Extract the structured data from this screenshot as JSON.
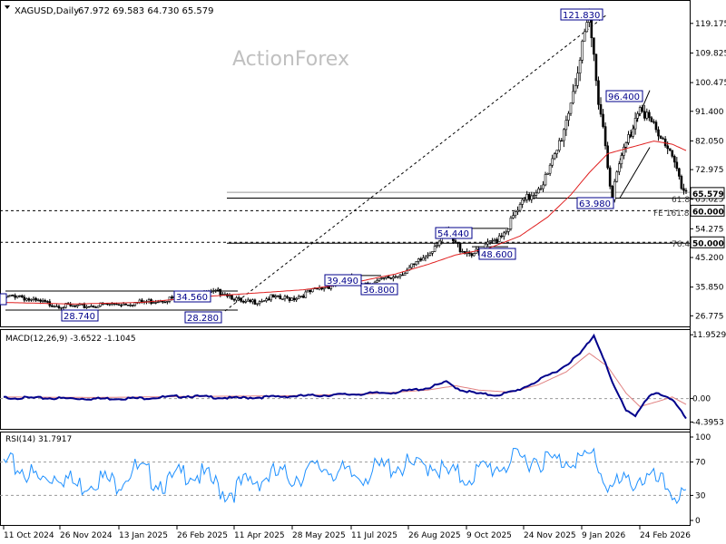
{
  "header": {
    "symbol": "XAGUSD,Daily",
    "ohlc": "67.972 69.583 64.730 65.579",
    "watermark": "ActionForex"
  },
  "colors": {
    "candles": "#000000",
    "ma": "#e02020",
    "macd_line": "#00008b",
    "macd_signal": "#e08080",
    "rsi": "#1e90ff",
    "label_border": "#00008b",
    "grid_dash": "#000000"
  },
  "chart_data": [
    {
      "panel": "price",
      "type": "candlestick",
      "yaxis_ticks": [
        "119.175",
        "109.825",
        "100.475",
        "91.400",
        "82.050",
        "72.975",
        "63.625",
        "54.275",
        "45.200",
        "35.850",
        "26.775"
      ],
      "ylim": [
        24.0,
        126.0
      ],
      "current_price": "65.579",
      "close_path": [
        [
          0,
          32.5
        ],
        [
          6,
          34
        ],
        [
          12,
          32
        ],
        [
          20,
          31
        ],
        [
          30,
          30
        ],
        [
          40,
          30.5
        ],
        [
          50,
          31
        ],
        [
          60,
          31.5
        ],
        [
          70,
          32.5
        ],
        [
          78,
          33
        ],
        [
          88,
          34
        ],
        [
          95,
          35
        ],
        [
          100,
          33
        ],
        [
          104,
          31
        ],
        [
          110,
          32
        ],
        [
          116,
          33
        ],
        [
          120,
          32.5
        ],
        [
          126,
          33
        ],
        [
          132,
          34.5
        ],
        [
          138,
          36
        ],
        [
          145,
          38
        ],
        [
          150,
          39.2
        ],
        [
          155,
          38
        ],
        [
          160,
          37.5
        ],
        [
          164,
          38.5
        ],
        [
          170,
          40
        ],
        [
          178,
          43
        ],
        [
          184,
          47
        ],
        [
          188,
          51
        ],
        [
          192,
          54
        ],
        [
          196,
          50
        ],
        [
          200,
          48
        ],
        [
          206,
          47
        ],
        [
          212,
          51
        ],
        [
          218,
          55
        ],
        [
          224,
          62
        ],
        [
          230,
          67
        ],
        [
          236,
          72
        ],
        [
          240,
          80
        ],
        [
          244,
          90
        ],
        [
          248,
          103
        ],
        [
          252,
          115
        ],
        [
          254,
          121.5
        ],
        [
          256,
          110
        ],
        [
          258,
          98
        ],
        [
          260,
          88
        ],
        [
          262,
          76
        ],
        [
          264,
          66
        ],
        [
          268,
          78
        ],
        [
          272,
          86
        ],
        [
          276,
          96
        ],
        [
          280,
          90
        ],
        [
          284,
          84
        ],
        [
          288,
          82
        ],
        [
          292,
          76
        ],
        [
          294,
          68
        ],
        [
          296,
          65.6
        ]
      ],
      "ma_path": [
        [
          0,
          31
        ],
        [
          30,
          30.5
        ],
        [
          60,
          31
        ],
        [
          90,
          33
        ],
        [
          110,
          34
        ],
        [
          130,
          35
        ],
        [
          150,
          37
        ],
        [
          170,
          40
        ],
        [
          184,
          43
        ],
        [
          196,
          46
        ],
        [
          210,
          48
        ],
        [
          224,
          52
        ],
        [
          236,
          58
        ],
        [
          246,
          65
        ],
        [
          254,
          72
        ],
        [
          262,
          78
        ],
        [
          272,
          80
        ],
        [
          282,
          82
        ],
        [
          290,
          81
        ],
        [
          296,
          79
        ]
      ],
      "price_labels": [
        "121.830",
        "96.400",
        "54.440",
        "63.980",
        "48.600",
        "39.490",
        "36.800",
        "34.560",
        "28.740",
        "28.280"
      ],
      "hline_labels": [
        "61.8",
        "FE 161.8",
        "76.4"
      ],
      "level_tags": [
        "65.579",
        "60.000",
        "50.000"
      ]
    },
    {
      "panel": "macd",
      "type": "line",
      "title": "MACD(12,26,9) -3.6522 -1.1045",
      "yaxis_ticks": [
        "11.9529",
        "0.00",
        "-4.3953"
      ],
      "ylim": [
        -5.5,
        12.5
      ],
      "macd_path": [
        [
          0,
          0.3
        ],
        [
          20,
          0.2
        ],
        [
          40,
          0.1
        ],
        [
          60,
          0.2
        ],
        [
          80,
          0.6
        ],
        [
          100,
          0.2
        ],
        [
          120,
          0.5
        ],
        [
          150,
          0.9
        ],
        [
          170,
          1.3
        ],
        [
          184,
          2.1
        ],
        [
          192,
          3.2
        ],
        [
          198,
          1.8
        ],
        [
          206,
          1.0
        ],
        [
          214,
          0.8
        ],
        [
          222,
          1.5
        ],
        [
          232,
          3.5
        ],
        [
          242,
          5.8
        ],
        [
          250,
          8.5
        ],
        [
          256,
          12.0
        ],
        [
          260,
          8.0
        ],
        [
          264,
          3.0
        ],
        [
          270,
          -2.0
        ],
        [
          274,
          -3.0
        ],
        [
          280,
          0.5
        ],
        [
          284,
          1.2
        ],
        [
          290,
          0.0
        ],
        [
          296,
          -3.65
        ]
      ],
      "signal_path": [
        [
          0,
          0.3
        ],
        [
          40,
          0.2
        ],
        [
          80,
          0.4
        ],
        [
          120,
          0.5
        ],
        [
          160,
          0.9
        ],
        [
          184,
          1.6
        ],
        [
          196,
          2.4
        ],
        [
          206,
          1.6
        ],
        [
          220,
          1.2
        ],
        [
          232,
          2.6
        ],
        [
          244,
          5.0
        ],
        [
          254,
          8.5
        ],
        [
          262,
          6.0
        ],
        [
          270,
          1.0
        ],
        [
          276,
          -1.5
        ],
        [
          284,
          -0.5
        ],
        [
          290,
          0.3
        ],
        [
          296,
          -1.1
        ]
      ]
    },
    {
      "panel": "rsi",
      "type": "line",
      "title": "RSI(14) 31.7917",
      "yaxis_ticks": [
        "100",
        "70",
        "30",
        "0"
      ],
      "ylim": [
        0,
        100
      ],
      "rsi_path": [
        [
          0,
          75
        ],
        [
          8,
          70
        ],
        [
          16,
          55
        ],
        [
          24,
          66
        ],
        [
          32,
          48
        ],
        [
          40,
          60
        ],
        [
          48,
          52
        ],
        [
          56,
          70
        ],
        [
          64,
          60
        ],
        [
          72,
          52
        ],
        [
          80,
          68
        ],
        [
          88,
          58
        ],
        [
          96,
          42
        ],
        [
          100,
          45
        ],
        [
          108,
          55
        ],
        [
          116,
          62
        ],
        [
          124,
          60
        ],
        [
          132,
          66
        ],
        [
          140,
          72
        ],
        [
          150,
          60
        ],
        [
          160,
          66
        ],
        [
          170,
          75
        ],
        [
          180,
          70
        ],
        [
          186,
          78
        ],
        [
          192,
          63
        ],
        [
          200,
          60
        ],
        [
          210,
          70
        ],
        [
          220,
          78
        ],
        [
          230,
          83
        ],
        [
          240,
          78
        ],
        [
          248,
          85
        ],
        [
          252,
          78
        ],
        [
          256,
          88
        ],
        [
          260,
          58
        ],
        [
          264,
          48
        ],
        [
          270,
          52
        ],
        [
          276,
          60
        ],
        [
          282,
          55
        ],
        [
          288,
          47
        ],
        [
          296,
          31.8
        ]
      ]
    }
  ],
  "xaxis": {
    "ticks": [
      "11 Oct 2024",
      "26 Nov 2024",
      "13 Jan 2025",
      "26 Feb 2025",
      "11 Apr 2025",
      "28 May 2025",
      "11 Jul 2025",
      "26 Aug 2025",
      "9 Oct 2025",
      "24 Nov 2025",
      "9 Jan 2026",
      "24 Feb 2026"
    ]
  }
}
